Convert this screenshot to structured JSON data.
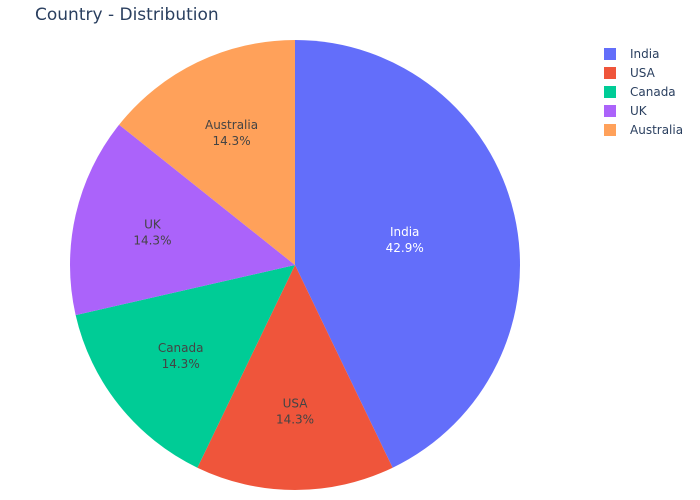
{
  "chart_data": {
    "type": "pie",
    "title": "Country - Distribution",
    "categories": [
      "India",
      "USA",
      "Canada",
      "UK",
      "Australia"
    ],
    "values": [
      42.9,
      14.3,
      14.3,
      14.3,
      14.3
    ],
    "percent_labels": [
      "42.9%",
      "14.3%",
      "14.3%",
      "14.3%",
      "14.3%"
    ],
    "colors": [
      "#636efa",
      "#ef553b",
      "#00cc96",
      "#ab63fa",
      "#ffa15a"
    ],
    "label_colors": [
      "#ffffff",
      "#444444",
      "#444444",
      "#444444",
      "#444444"
    ],
    "legend_position": "top-right",
    "direction": "clockwise",
    "start": "top"
  }
}
